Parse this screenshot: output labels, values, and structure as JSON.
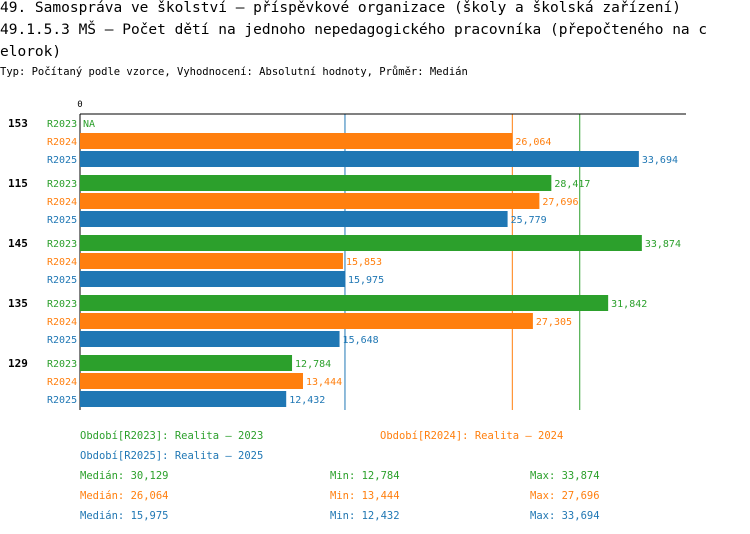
{
  "header": {
    "title_line1": "49. Samospráva ve školství – příspěvkové organizace (školy a školská zařízení)",
    "title_line2": "49.1.5.3 MŠ – Počet dětí na jednoho nepedagogického pracovníka (přepočteného na c",
    "title_line3": "elorok)",
    "subtitle": "Typ: Počítaný podle vzorce, Vyhodnocení: Absolutní hodnoty, Průměr: Medián"
  },
  "colors": {
    "R2023": "#2ca02c",
    "R2024": "#ff7f0e",
    "R2025": "#1f77b4"
  },
  "chart_data": {
    "type": "bar",
    "orientation": "horizontal",
    "axis_zero_label": "0",
    "xlim": [
      0,
      37.5
    ],
    "categories": [
      "153",
      "115",
      "145",
      "135",
      "129"
    ],
    "series": [
      {
        "name": "R2023",
        "values": [
          null,
          28.417,
          33.874,
          31.842,
          12.784
        ],
        "labels": [
          "NA",
          "28,417",
          "33,874",
          "31,842",
          "12,784"
        ]
      },
      {
        "name": "R2024",
        "values": [
          26.064,
          27.696,
          15.853,
          27.305,
          13.444
        ],
        "labels": [
          "26,064",
          "27,696",
          "15,853",
          "27,305",
          "13,444"
        ]
      },
      {
        "name": "R2025",
        "values": [
          33.694,
          25.779,
          15.975,
          15.648,
          12.432
        ],
        "labels": [
          "33,694",
          "25,779",
          "15,975",
          "15,648",
          "12,432"
        ]
      }
    ],
    "median_lines": [
      {
        "series": "R2023",
        "value": 30.129
      },
      {
        "series": "R2024",
        "value": 26.064
      },
      {
        "series": "R2025",
        "value": 15.975
      }
    ]
  },
  "legend": {
    "period_2023": "Období[R2023]: Realita – 2023",
    "period_2024": "Období[R2024]: Realita – 2024",
    "period_2025": "Období[R2025]: Realita – 2025",
    "stats": [
      {
        "median": "Medián: 30,129",
        "min": "Min: 12,784",
        "max": "Max: 33,874"
      },
      {
        "median": "Medián: 26,064",
        "min": "Min: 13,444",
        "max": "Max: 27,696"
      },
      {
        "median": "Medián: 15,975",
        "min": "Min: 12,432",
        "max": "Max: 33,694"
      }
    ]
  }
}
